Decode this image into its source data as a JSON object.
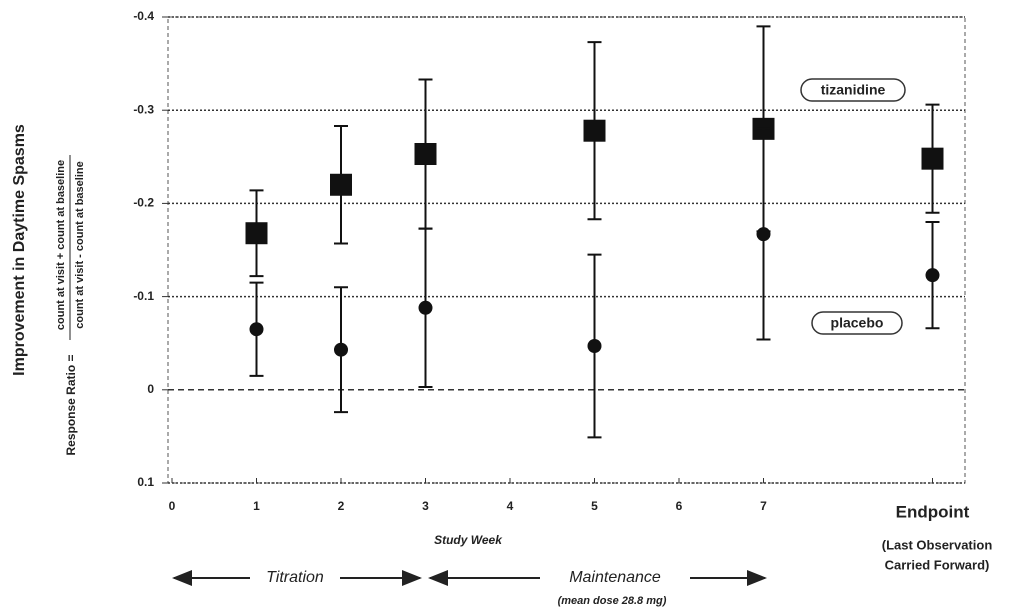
{
  "chart_data": {
    "type": "errorbar",
    "y_title": "Improvement in Daytime Spasms",
    "y_subtitle": "Response Ratio =",
    "y_fraction": [
      "count at visit + count at baseline",
      "count at visit - count at baseline"
    ],
    "x_title": "Study Week",
    "categories": [
      "0",
      "1",
      "2",
      "3",
      "4",
      "5",
      "6",
      "7",
      null,
      "Endpoint"
    ],
    "endpoint_note": [
      "(Last Observation",
      "Carried Forward)"
    ],
    "phases": [
      {
        "label": "Titration"
      },
      {
        "label": "Maintenance",
        "note": "(mean dose 28.8 mg)"
      }
    ],
    "series": [
      {
        "name": "tizanidine",
        "marker": "square",
        "color": "#111111",
        "values": [
          null,
          -0.168,
          -0.22,
          -0.253,
          null,
          -0.278,
          null,
          -0.28,
          null,
          -0.248
        ],
        "errors": [
          null,
          0.046,
          0.063,
          0.08,
          null,
          0.095,
          null,
          0.11,
          null,
          0.058
        ]
      },
      {
        "name": "placebo",
        "marker": "circle",
        "color": "#111111",
        "values": [
          null,
          -0.065,
          -0.043,
          -0.088,
          null,
          -0.047,
          null,
          -0.167,
          null,
          -0.123
        ],
        "errors": [
          null,
          0.05,
          0.067,
          0.085,
          null,
          0.098,
          null,
          0.113,
          null,
          0.057
        ]
      }
    ],
    "ylim": [
      -0.4,
      0.1
    ],
    "y_inverted": true,
    "yticks": [
      -0.4,
      -0.3,
      -0.2,
      -0.1,
      0,
      0.1
    ],
    "grid": true
  }
}
